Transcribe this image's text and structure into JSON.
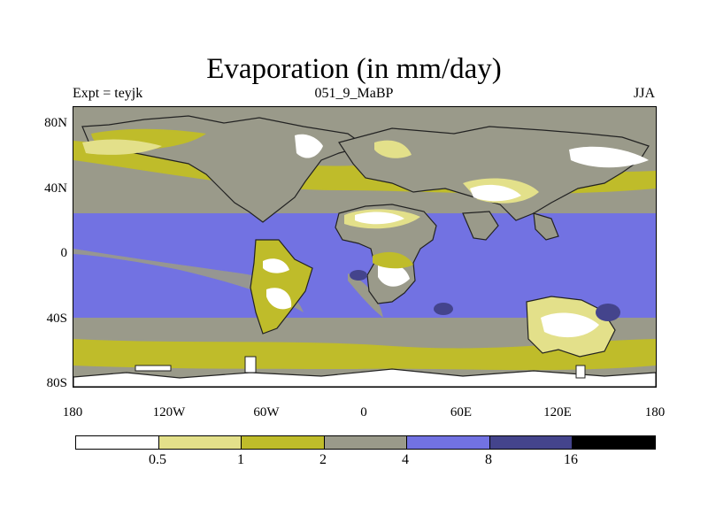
{
  "title": "Evaporation (in mm/day)",
  "subtitle_left": "Expt = teyjk",
  "subtitle_center": "051_9_MaBP",
  "subtitle_right": "JJA",
  "lat_labels": [
    "80N",
    "40N",
    "0",
    "40S",
    "80S"
  ],
  "lon_labels": [
    "180",
    "120W",
    "60W",
    "0",
    "60E",
    "120E",
    "180"
  ],
  "colorbar": {
    "labels": [
      "0.5",
      "1",
      "2",
      "4",
      "8",
      "16"
    ],
    "colors": [
      "#ffffff",
      "#e3e08a",
      "#bfbc2a",
      "#9a9a8a",
      "#7272e2",
      "#44448c",
      "#000000"
    ]
  },
  "map_colors": {
    "ocean_high": "#7272e2",
    "ocean_mid": "#9a9a8a",
    "ocean_low": "#bfbc2a",
    "land_low": "#e3e08a",
    "land_none": "#ffffff",
    "very_high": "#44448c",
    "coast": "#222222"
  }
}
